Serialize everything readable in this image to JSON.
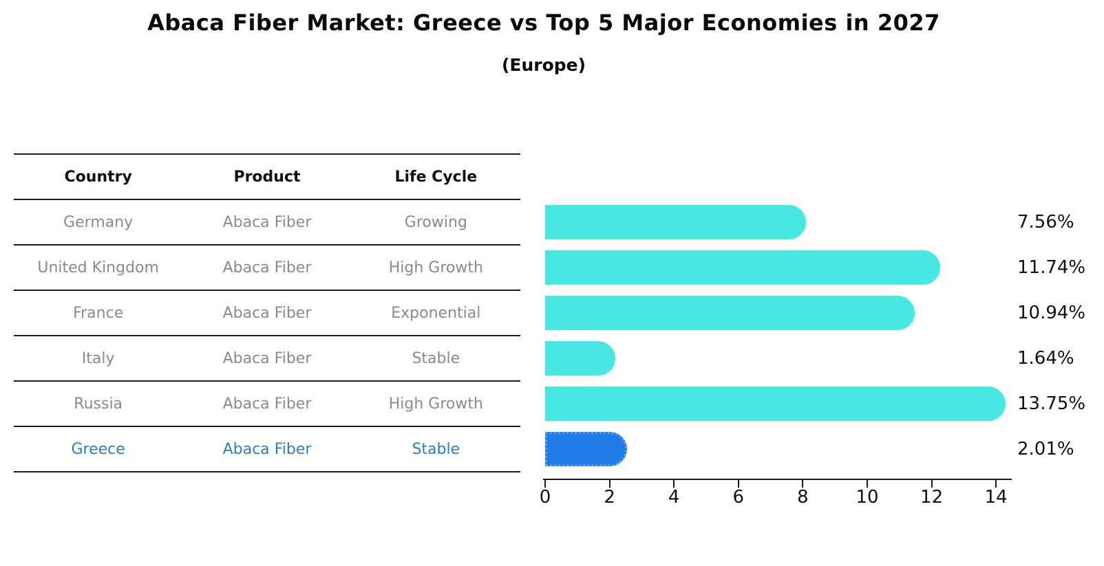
{
  "title": "Abaca Fiber Market: Greece vs Top 5 Major Economies in 2027",
  "subtitle": "(Europe)",
  "colors": {
    "bar_default": "#49e7e2",
    "bar_highlight": "#207ae8",
    "highlight_text": "#2d7dc8",
    "table_text": "#8a8a8a",
    "header_text": "#111111",
    "axis": "#1a1a1a"
  },
  "table": {
    "headers": [
      "Country",
      "Product",
      "Life Cycle"
    ],
    "rows": [
      {
        "country": "Germany",
        "product": "Abaca Fiber",
        "life_cycle": "Growing",
        "highlight": false
      },
      {
        "country": "United Kingdom",
        "product": "Abaca Fiber",
        "life_cycle": "High Growth",
        "highlight": false
      },
      {
        "country": "France",
        "product": "Abaca Fiber",
        "life_cycle": "Exponential",
        "highlight": false
      },
      {
        "country": "Italy",
        "product": "Abaca Fiber",
        "life_cycle": "Stable",
        "highlight": false
      },
      {
        "country": "Russia",
        "product": "Abaca Fiber",
        "life_cycle": "High Growth",
        "highlight": false
      },
      {
        "country": "Greece",
        "product": "Abaca Fiber",
        "life_cycle": "Stable",
        "highlight": true
      }
    ]
  },
  "chart_data": {
    "type": "bar",
    "orientation": "horizontal",
    "title": "Abaca Fiber Market: Greece vs Top 5 Major Economies in 2027",
    "subtitle": "(Europe)",
    "categories": [
      "Germany",
      "United Kingdom",
      "France",
      "Italy",
      "Russia",
      "Greece"
    ],
    "values": [
      7.56,
      11.74,
      10.94,
      1.64,
      13.75,
      2.01
    ],
    "value_labels": [
      "7.56%",
      "11.74%",
      "10.94%",
      "1.64%",
      "13.75%",
      "2.01%"
    ],
    "highlight_index": 5,
    "xlabel": "",
    "ylabel": "",
    "xlim": [
      0,
      14
    ],
    "xticks": [
      0,
      2,
      4,
      6,
      8,
      10,
      12,
      14
    ],
    "grid": false,
    "legend": "none"
  }
}
